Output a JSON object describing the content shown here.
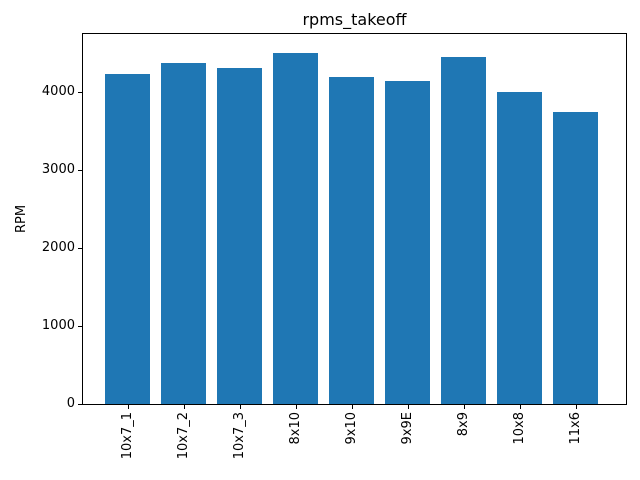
{
  "chart_data": {
    "type": "bar",
    "title": "rpms_takeoff",
    "xlabel": "",
    "ylabel": "RPM",
    "categories": [
      "10x7_1",
      "10x7_2",
      "10x7_3",
      "8x10",
      "9x10",
      "9x9E",
      "8x9",
      "10x8",
      "11x6"
    ],
    "values": [
      4220,
      4360,
      4300,
      4490,
      4190,
      4130,
      4440,
      3990,
      3740
    ],
    "yticks": [
      0,
      1000,
      2000,
      3000,
      4000
    ],
    "ylim": [
      0,
      4750
    ],
    "bar_color": "#1f77b4",
    "grid": false,
    "legend": null,
    "x_tick_rotation": 90
  }
}
